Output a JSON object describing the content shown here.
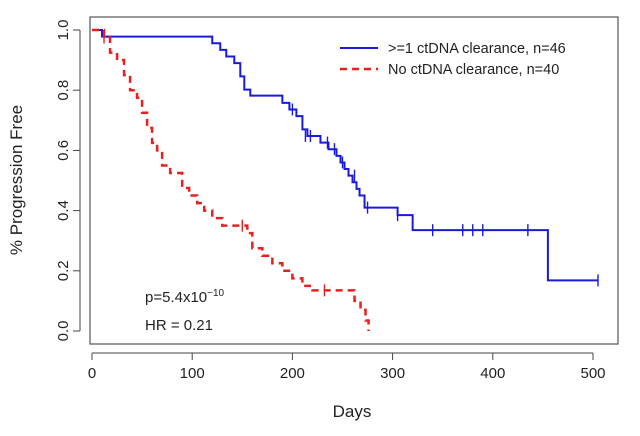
{
  "chart_data": {
    "type": "line",
    "subtype": "kaplan-meier step curve",
    "title": "",
    "xlabel": "Days",
    "ylabel": "% Progression Free",
    "xlim": [
      0,
      510
    ],
    "ylim": [
      0,
      1.0
    ],
    "x_ticks": [
      0,
      100,
      200,
      300,
      400,
      500
    ],
    "x_tick_labels": [
      "0",
      "100",
      "200",
      "300",
      "400",
      "500"
    ],
    "y_ticks": [
      0.0,
      0.2,
      0.4,
      0.6,
      0.8,
      1.0
    ],
    "y_tick_labels": [
      "0.0",
      "0.2",
      "0.4",
      "0.6",
      "0.8",
      "1.0"
    ],
    "grid": false,
    "legend_position": "top-right",
    "series": [
      {
        "name": ">=1 ctDNA clearance, n=46",
        "color": "#1a1adb",
        "dash": "solid",
        "x": [
          0,
          10,
          120,
          128,
          134,
          142,
          148,
          152,
          158,
          190,
          197,
          204,
          210,
          215,
          220,
          228,
          232,
          236,
          240,
          244,
          248,
          252,
          256,
          260,
          264,
          267,
          272,
          305,
          320,
          340,
          370,
          425,
          455,
          505
        ],
        "y": [
          1.0,
          0.978,
          0.956,
          0.934,
          0.912,
          0.89,
          0.846,
          0.802,
          0.782,
          0.758,
          0.736,
          0.714,
          0.67,
          0.648,
          0.648,
          0.626,
          0.626,
          0.604,
          0.604,
          0.582,
          0.56,
          0.538,
          0.516,
          0.494,
          0.472,
          0.45,
          0.41,
          0.385,
          0.335,
          0.335,
          0.335,
          0.335,
          0.168,
          0.168
        ],
        "censor_x": [
          200,
          213,
          218,
          235,
          242,
          250,
          262,
          275,
          305,
          340,
          370,
          380,
          390,
          435,
          505
        ],
        "censor_y": [
          0.736,
          0.648,
          0.648,
          0.626,
          0.604,
          0.56,
          0.516,
          0.41,
          0.385,
          0.335,
          0.335,
          0.335,
          0.335,
          0.335,
          0.168
        ]
      },
      {
        "name": "No ctDNA clearance, n=40",
        "color": "#e82020",
        "dash": "dashed",
        "x": [
          0,
          10,
          12,
          18,
          25,
          32,
          38,
          45,
          50,
          55,
          60,
          65,
          70,
          78,
          90,
          97,
          105,
          112,
          120,
          130,
          140,
          155,
          160,
          170,
          180,
          190,
          200,
          210,
          220,
          255,
          262,
          268,
          273,
          276
        ],
        "y": [
          1.0,
          1.0,
          0.975,
          0.925,
          0.9,
          0.85,
          0.8,
          0.775,
          0.725,
          0.675,
          0.625,
          0.6,
          0.55,
          0.525,
          0.475,
          0.45,
          0.425,
          0.4,
          0.375,
          0.35,
          0.35,
          0.325,
          0.275,
          0.25,
          0.225,
          0.2,
          0.175,
          0.15,
          0.135,
          0.135,
          0.1,
          0.07,
          0.035,
          0.0
        ],
        "censor_x": [
          12,
          150,
          232
        ],
        "censor_y": [
          0.975,
          0.35,
          0.135
        ]
      }
    ],
    "annotations": {
      "p_value_base": "p=5.4x10",
      "p_value_exp": "−10",
      "hr_text": "HR = 0.21"
    }
  }
}
